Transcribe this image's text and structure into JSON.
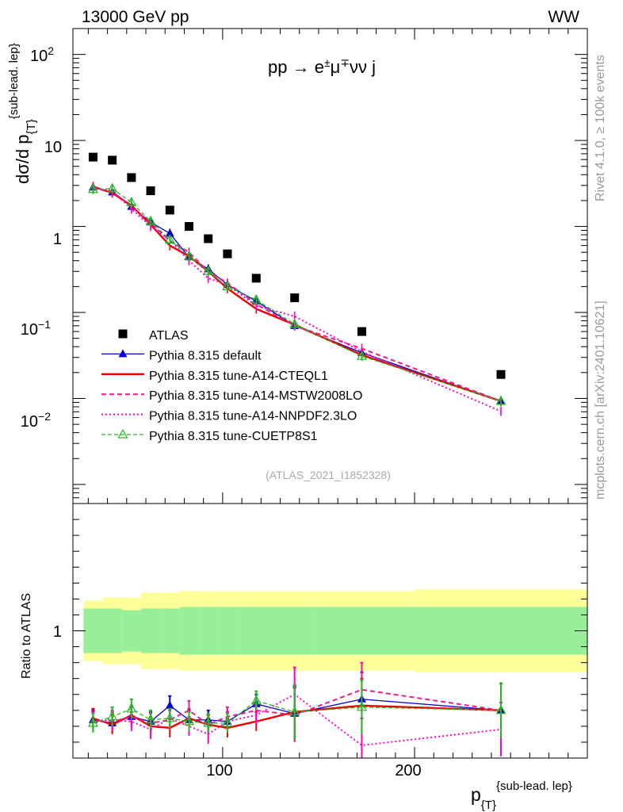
{
  "header": {
    "left": "13000 GeV pp",
    "right": "WW"
  },
  "side_labels": {
    "rivet": "Rivet 4.1.0, ≥ 100k events",
    "mcplots": "mcplots.cern.ch [arXiv:2401.10621]"
  },
  "chart_data": {
    "type": "line",
    "title": "pp → e±μ∓νν j",
    "analysis_tag": "(ATLAS_2021_I1852328)",
    "xlabel": "p_{T}^{sub-lead. lep}",
    "ylabel": "dσ/d p_{T}^{sub-lead. lep}",
    "ratio_ylabel": "Ratio to ATLAS",
    "x_tick_labels": [
      "100",
      "200"
    ],
    "y_tick_labels_main": [
      "10^-2",
      "10^-1",
      "1",
      "10",
      "10^2"
    ],
    "y_tick_labels_ratio": [
      "1"
    ],
    "xlim": [
      22,
      290
    ],
    "ylim_main": [
      0.0006,
      200
    ],
    "ylim_ratio": [
      0.2,
      1.8
    ],
    "yscale_main": "log",
    "legend_position": "center-left",
    "x": [
      32.5,
      42.5,
      52.5,
      62.5,
      72.5,
      82.5,
      92.5,
      102.5,
      117.5,
      137.5,
      172.5,
      245
    ],
    "bin_edges": [
      27.5,
      37.5,
      47.5,
      57.5,
      67.5,
      77.5,
      87.5,
      97.5,
      107.5,
      127.5,
      147.5,
      200,
      290
    ],
    "band_inner_halfwidth": [
      0.14,
      0.14,
      0.13,
      0.14,
      0.14,
      0.15,
      0.15,
      0.15,
      0.15,
      0.15,
      0.15,
      0.15
    ],
    "band_outer_halfwidth": [
      0.19,
      0.21,
      0.21,
      0.24,
      0.24,
      0.25,
      0.25,
      0.25,
      0.25,
      0.25,
      0.25,
      0.26
    ],
    "series": [
      {
        "name": "ATLAS",
        "color": "#000000",
        "style": "marker-square",
        "values": [
          6.4,
          5.9,
          3.7,
          2.6,
          1.55,
          1.0,
          0.72,
          0.48,
          0.25,
          0.148,
          0.06,
          0.019
        ]
      },
      {
        "name": "Pythia 8.315 default",
        "color": "#0000cc",
        "style": "solid-filled-triangle",
        "values": [
          2.85,
          2.5,
          1.7,
          1.12,
          0.83,
          0.44,
          0.32,
          0.21,
          0.135,
          0.07,
          0.034,
          0.0093
        ],
        "ratio": [
          0.44,
          0.42,
          0.46,
          0.43,
          0.53,
          0.44,
          0.44,
          0.43,
          0.54,
          0.48,
          0.57,
          0.5
        ]
      },
      {
        "name": "Pythia 8.315 tune-A14-CTEQL1",
        "color": "#ee0000",
        "style": "solid-thick",
        "values": [
          2.9,
          2.45,
          1.75,
          1.05,
          0.6,
          0.45,
          0.3,
          0.19,
          0.11,
          0.072,
          0.032,
          0.0093
        ],
        "ratio": [
          0.45,
          0.41,
          0.47,
          0.4,
          0.39,
          0.45,
          0.41,
          0.39,
          0.43,
          0.49,
          0.53,
          0.5
        ]
      },
      {
        "name": "Pythia 8.315 tune-A14-MSTW2008LO",
        "color": "#ee1c8c",
        "style": "dashed",
        "values": [
          2.8,
          2.55,
          1.7,
          1.1,
          0.68,
          0.5,
          0.3,
          0.22,
          0.125,
          0.07,
          0.038,
          0.0093
        ],
        "ratio": [
          0.43,
          0.43,
          0.46,
          0.42,
          0.44,
          0.5,
          0.41,
          0.46,
          0.5,
          0.47,
          0.63,
          0.5
        ]
      },
      {
        "name": "Pythia 8.315 tune-A14-NNPDF2.3LO",
        "color": "#ff00cc",
        "style": "dotted",
        "values": [
          2.8,
          2.6,
          1.6,
          1.0,
          0.7,
          0.4,
          0.25,
          0.21,
          0.12,
          0.09,
          0.035,
          0.0071
        ],
        "ratio": [
          0.43,
          0.44,
          0.43,
          0.38,
          0.45,
          0.4,
          0.35,
          0.43,
          0.47,
          0.6,
          0.28,
          0.38
        ]
      },
      {
        "name": "Pythia 8.315 tune-CUETP8S1",
        "color": "#22bb22",
        "style": "dashed-open-triangle",
        "values": [
          2.7,
          2.75,
          1.9,
          1.15,
          0.7,
          0.45,
          0.3,
          0.2,
          0.14,
          0.073,
          0.031,
          0.0093
        ],
        "ratio": [
          0.42,
          0.46,
          0.51,
          0.44,
          0.45,
          0.43,
          0.42,
          0.42,
          0.56,
          0.49,
          0.52,
          0.5
        ]
      }
    ]
  }
}
